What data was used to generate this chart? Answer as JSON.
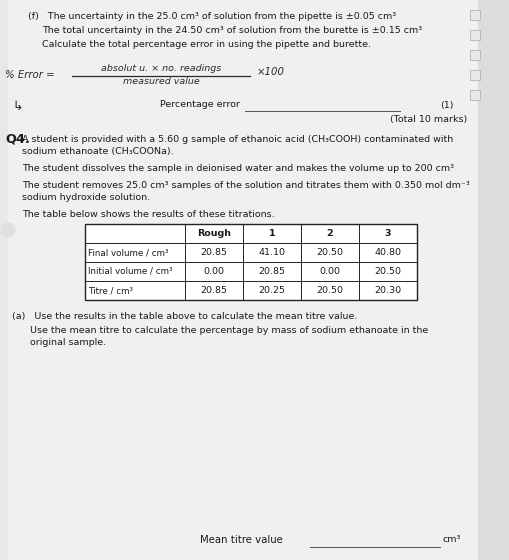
{
  "bg_color": "#c8c8c8",
  "page_color": "#f0f0f0",
  "right_strip_color": "#dcdcdc",
  "section_f": {
    "line1": "(f)   The uncertainty in the 25.0 cm³ of solution from the pipette is ±0.05 cm³",
    "line2": "The total uncertainty in the 24.50 cm³ of solution from the burette is ±0.15 cm³",
    "line3": "Calculate the total percentage error in using the pipette and burette."
  },
  "handwritten_percent_error": "% Error =",
  "handwritten_numerator": "absolut u. × no. readings",
  "handwritten_denominator": "measured value",
  "handwritten_x100": "×100",
  "percentage_error_label": "Percentage error",
  "marks_1": "(1)",
  "total_marks": "(Total 10 marks)",
  "q4_label": "Q4.",
  "q4_text1": "A student is provided with a 5.60 g sample of ethanoic acid (CH₃COOH) contaminated with",
  "q4_text2": "sodium ethanoate (CH₃COONa).",
  "q4_text3": "The student dissolves the sample in deionised water and makes the volume up to 200 cm³",
  "q4_text4": "The student removes 25.0 cm³ samples of the solution and titrates them with 0.350 mol dm⁻³",
  "q4_text5": "sodium hydroxide solution.",
  "q4_text6": "The table below shows the results of these titrations.",
  "table_col_headers": [
    "Rough",
    "1",
    "2",
    "3"
  ],
  "table_row_labels": [
    "Final volume / cm³",
    "Initial volume / cm³",
    "Titre / cm³"
  ],
  "table_data": [
    [
      "20.85",
      "41.10",
      "20.50",
      "40.80"
    ],
    [
      "0.00",
      "20.85",
      "0.00",
      "20.50"
    ],
    [
      "20.85",
      "20.25",
      "20.50",
      "20.30"
    ]
  ],
  "part_a_line1": "(a)   Use the results in the table above to calculate the mean titre value.",
  "part_a_line2": "Use the mean titre to calculate the percentage by mass of sodium ethanoate in the",
  "part_a_line3": "original sample.",
  "mean_titre_label": "Mean titre value",
  "cm3_unit": "cm³",
  "notch_color": "#aaaaaa"
}
